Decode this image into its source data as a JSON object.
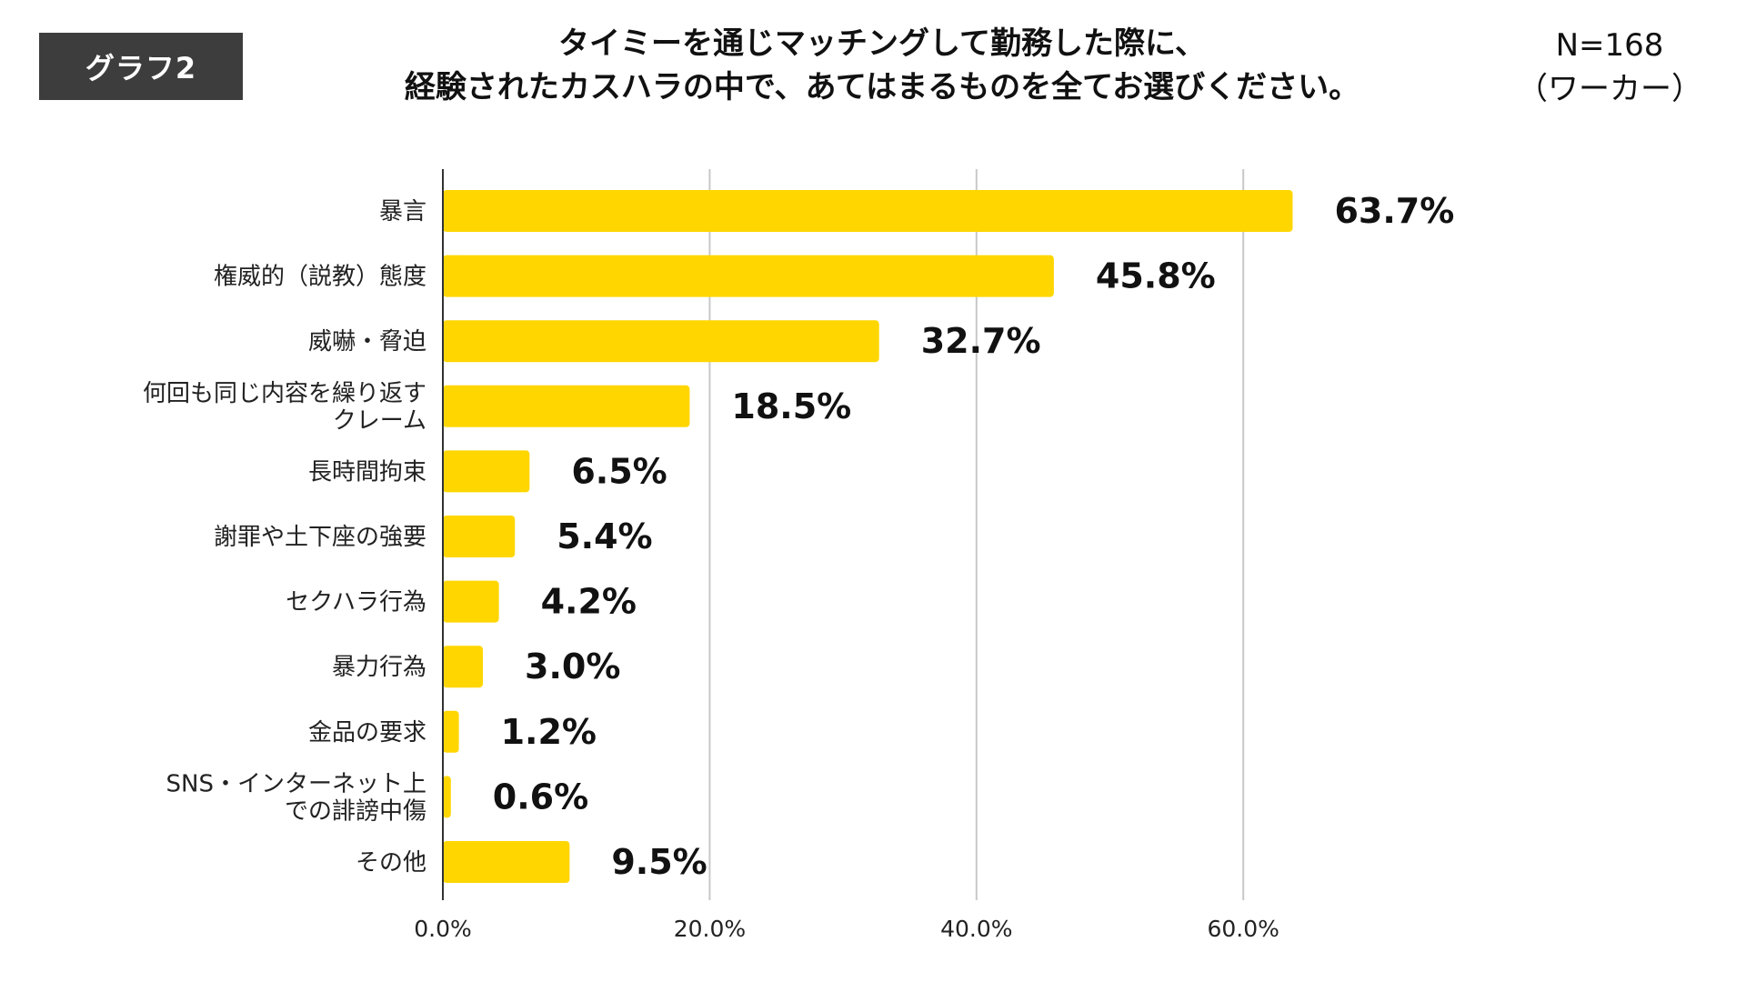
{
  "header": {
    "badge": "グラフ2",
    "title_line1": "タイミーを通じマッチングして勤務した際に、",
    "title_line2": "経験されたカスハラの中で、あてはまるものを全てお選びください。",
    "n_label": "N=168",
    "respondent": "（ワーカー）"
  },
  "colors": {
    "bar": "#FFD600",
    "grid": "#c8c8c8",
    "axis": "#333333",
    "badge_bg": "#3d3d3d"
  },
  "chart_data": {
    "type": "bar",
    "orientation": "horizontal",
    "categories": [
      [
        "暴言"
      ],
      [
        "権威的（説教）態度"
      ],
      [
        "威嚇・脅迫"
      ],
      [
        "何回も同じ内容を繰り返す",
        "クレーム"
      ],
      [
        "長時間拘束"
      ],
      [
        "謝罪や土下座の強要"
      ],
      [
        "セクハラ行為"
      ],
      [
        "暴力行為"
      ],
      [
        "金品の要求"
      ],
      [
        "SNS・インターネット上",
        "での誹謗中傷"
      ],
      [
        "その他"
      ]
    ],
    "values": [
      63.7,
      45.8,
      32.7,
      18.5,
      6.5,
      5.4,
      4.2,
      3.0,
      1.2,
      0.6,
      9.5
    ],
    "value_labels": [
      "63.7%",
      "45.8%",
      "32.7%",
      "18.5%",
      "6.5%",
      "5.4%",
      "4.2%",
      "3.0%",
      "1.2%",
      "0.6%",
      "9.5%"
    ],
    "xlim": [
      0,
      72
    ],
    "xticks": [
      0,
      20,
      40,
      60
    ],
    "xtick_labels": [
      "0.0%",
      "20.0%",
      "40.0%",
      "60.0%"
    ],
    "grid": true
  }
}
